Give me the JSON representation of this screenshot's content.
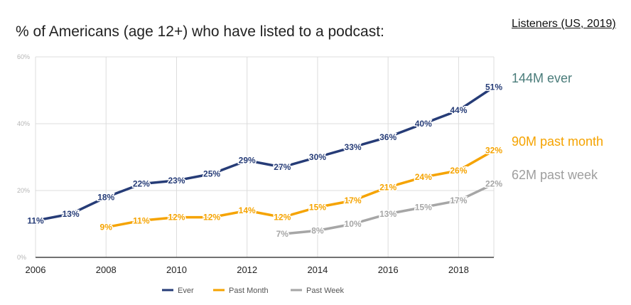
{
  "title": "% of Americans (age 12+) who have listed to a podcast:",
  "side_heading": "Listeners (US, 2019)",
  "side_labels": [
    {
      "text": "144M ever",
      "color": "#4a7c7a"
    },
    {
      "text": "90M past month",
      "color": "#f5a300"
    },
    {
      "text": "62M past week",
      "color": "#9e9e9e"
    }
  ],
  "chart_data": {
    "type": "line",
    "title": "% of Americans (age 12+) who have listed to a podcast:",
    "xlabel": "",
    "ylabel": "",
    "xlim": [
      2006,
      2019
    ],
    "ylim": [
      0,
      60
    ],
    "x_ticks": [
      2006,
      2008,
      2010,
      2012,
      2014,
      2016,
      2018
    ],
    "y_ticks": [
      0,
      20,
      40,
      60
    ],
    "y_tick_labels": [
      "0%",
      "20%",
      "40%",
      "60%"
    ],
    "grid": true,
    "legend_position": "bottom",
    "series": [
      {
        "name": "Ever",
        "color": "#263c77",
        "x": [
          2006,
          2007,
          2008,
          2009,
          2010,
          2011,
          2012,
          2013,
          2014,
          2015,
          2016,
          2017,
          2018,
          2019
        ],
        "values": [
          11,
          13,
          18,
          22,
          23,
          25,
          29,
          27,
          30,
          33,
          36,
          40,
          44,
          51
        ],
        "labels": [
          "11%",
          "13%",
          "18%",
          "22%",
          "23%",
          "25%",
          "29%",
          "27%",
          "30%",
          "33%",
          "36%",
          "40%",
          "44%",
          "51%"
        ]
      },
      {
        "name": "Past Month",
        "color": "#f5a300",
        "x": [
          2008,
          2009,
          2010,
          2011,
          2012,
          2013,
          2014,
          2015,
          2016,
          2017,
          2018,
          2019
        ],
        "values": [
          9,
          11,
          12,
          12,
          14,
          12,
          15,
          17,
          21,
          24,
          26,
          32
        ],
        "labels": [
          "9%",
          "11%",
          "12%",
          "12%",
          "14%",
          "12%",
          "15%",
          "17%",
          "21%",
          "24%",
          "26%",
          "32%"
        ]
      },
      {
        "name": "Past Week",
        "color": "#a6a6a6",
        "x": [
          2013,
          2014,
          2015,
          2016,
          2017,
          2018,
          2019
        ],
        "values": [
          7,
          8,
          10,
          13,
          15,
          17,
          22
        ],
        "labels": [
          "7%",
          "8%",
          "10%",
          "13%",
          "15%",
          "17%",
          "22%"
        ]
      }
    ]
  }
}
